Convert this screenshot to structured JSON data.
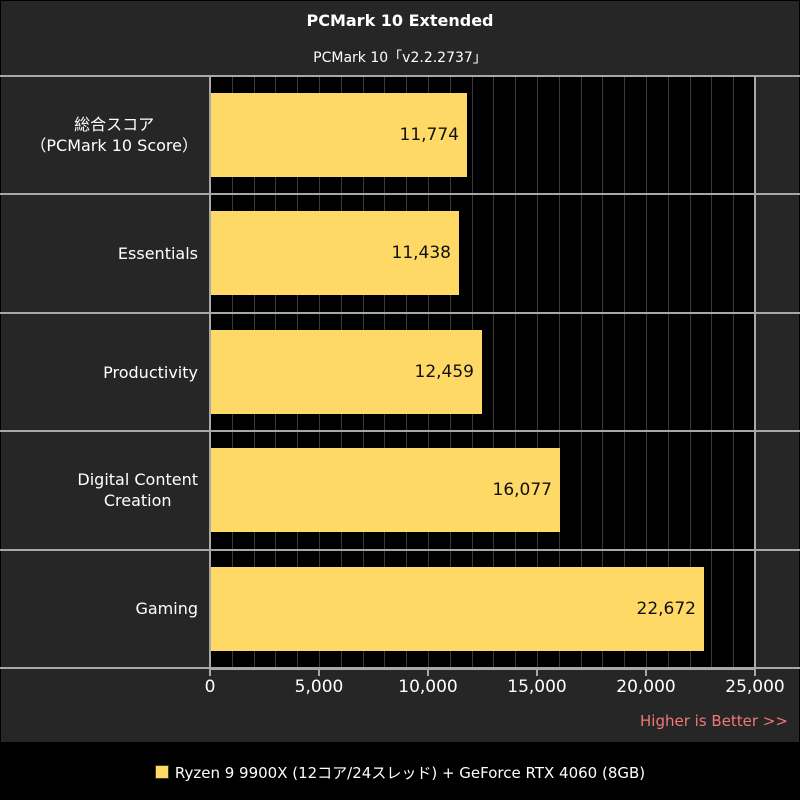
{
  "chart_data": {
    "type": "bar",
    "orientation": "horizontal",
    "title": "PCMark 10 Extended",
    "subtitle": "PCMark 10「v2.2.2737」",
    "categories": [
      "総合スコア\n（PCMark 10 Score）",
      "Essentials",
      "Productivity",
      "Digital Content Creation",
      "Gaming"
    ],
    "category_lines": [
      [
        "総合スコア",
        "（PCMark 10 Score）"
      ],
      [
        "Essentials"
      ],
      [
        "Productivity"
      ],
      [
        "Digital Content",
        "Creation"
      ],
      [
        "Gaming"
      ]
    ],
    "series": [
      {
        "name": "Ryzen 9 9900X (12コア/24スレッド) + GeForce RTX 4060 (8GB)",
        "color": "#FFD966",
        "values": [
          11774,
          11438,
          12459,
          16077,
          22672
        ],
        "labels": [
          "11,774",
          "11,438",
          "12,459",
          "16,077",
          "22,672"
        ]
      }
    ],
    "xlabel": "",
    "ylabel": "",
    "xlim": [
      0,
      25000
    ],
    "xticks": [
      0,
      5000,
      10000,
      15000,
      20000,
      25000
    ],
    "xtick_labels": [
      "0",
      "5,000",
      "10,000",
      "15,000",
      "20,000",
      "25,000"
    ],
    "minor_grid_step": 1000,
    "grid": true,
    "annotation": "Higher is Better >>",
    "legend_position": "bottom"
  },
  "colors": {
    "background": "#262626",
    "plot_background": "#000000",
    "bar": "#FFD966",
    "annotation": "#F07878",
    "grid": "#3A3A3A",
    "frame": "#A8A8A8"
  }
}
